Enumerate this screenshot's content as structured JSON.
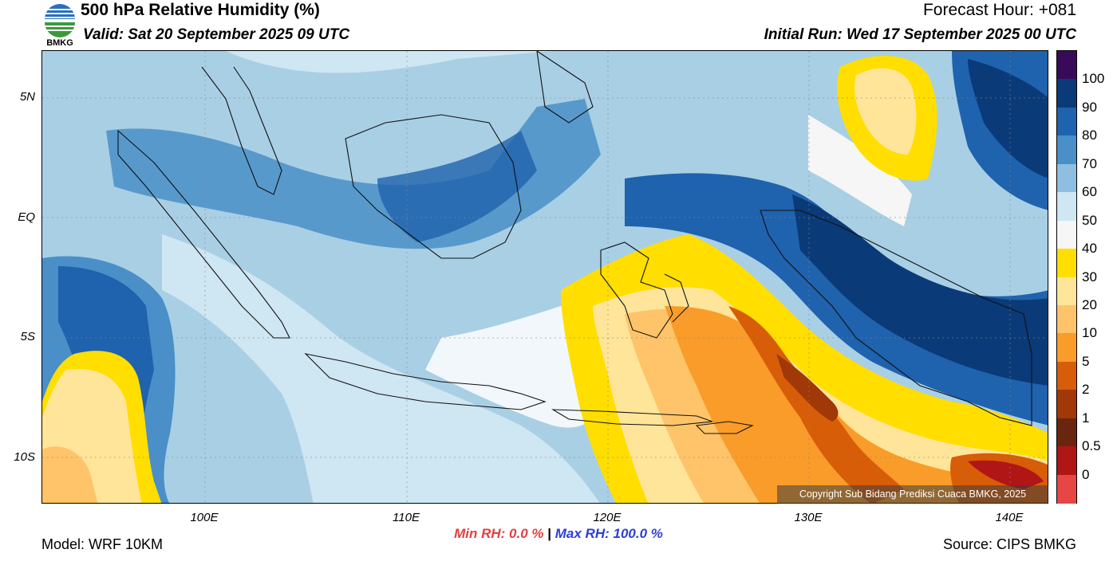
{
  "header": {
    "title": "500 hPa Relative Humidity (%)",
    "valid": "Valid: Sat 20 September 2025 09 UTC",
    "forecast_hour": "Forecast Hour: +081",
    "initial_run": "Initial Run: Wed 17 September 2025 00 UTC",
    "logo_text": "BMKG"
  },
  "map": {
    "lat_labels": [
      "5N",
      "EQ",
      "5S",
      "10S"
    ],
    "lon_labels": [
      "100E",
      "110E",
      "120E",
      "130E",
      "140E"
    ],
    "copyright": "Copyright Sub Bidang Prediksi Cuaca BMKG, 2025"
  },
  "colorbar": {
    "labels": [
      "100",
      "90",
      "80",
      "70",
      "60",
      "50",
      "40",
      "30",
      "20",
      "10",
      "5",
      "2",
      "1",
      "0.5",
      "0"
    ],
    "colors": [
      "#3a0a5a",
      "#0b3a78",
      "#1f62ad",
      "#4a8fc8",
      "#8ebfe0",
      "#cfe6f3",
      "#f6f6f6",
      "#ffde00",
      "#ffe59a",
      "#ffc46a",
      "#f99c2a",
      "#d75d08",
      "#a03808",
      "#6a2510",
      "#b01616",
      "#e84545"
    ]
  },
  "stats": {
    "min_label": "Min RH:",
    "min_value": "0.0 %",
    "separator": "|",
    "max_label": "Max RH:",
    "max_value": "100.0 %"
  },
  "footer": {
    "model": "Model: WRF 10KM",
    "source": "Source: CIPS BMKG"
  }
}
